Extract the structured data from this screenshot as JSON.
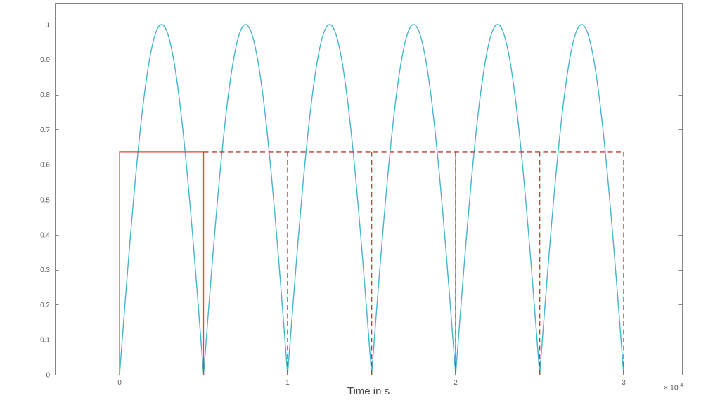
{
  "figure": {
    "background": "#ffffff",
    "axes_color": "#848484",
    "tick_label_color": "#5c5c5c",
    "label_color": "#454545"
  },
  "chart_data": {
    "type": "line",
    "title": "",
    "xlabel": "Time in s",
    "ylabel": "",
    "grid": false,
    "legend": null,
    "xlim": [
      -0.385,
      3.347
    ],
    "ylim": [
      0,
      1.062
    ],
    "xtick_values": [
      0,
      1,
      2,
      3
    ],
    "xtick_labels": [
      "0",
      "1",
      "2",
      "3"
    ],
    "x_multiplier": {
      "base": "× 10",
      "exponent": "-4"
    },
    "ytick_values": [
      0,
      0.1,
      0.2,
      0.3,
      0.4,
      0.5,
      0.6,
      0.7,
      0.8,
      0.9,
      1
    ],
    "ytick_labels": [
      "0",
      "0.1",
      "0.2",
      "0.3",
      "0.4",
      "0.5",
      "0.6",
      "0.7",
      "0.8",
      "0.9",
      "1"
    ],
    "dc_level": 0.6366,
    "series": [
      {
        "name": "rectified-sine",
        "type": "function",
        "fn": "abs_sin",
        "amplitude": 1,
        "arch_width": 0.5,
        "t_start": 0,
        "t_end": 3,
        "color": "#44b5cc",
        "style": "solid",
        "width": 1.4
      },
      {
        "name": "square-pulse-first-period",
        "type": "polyline",
        "points": [
          [
            0,
            0
          ],
          [
            0,
            0.6366
          ],
          [
            0.5,
            0.6366
          ],
          [
            0.5,
            0
          ]
        ],
        "color": "#e3453a",
        "style": "solid",
        "width": 1.3
      },
      {
        "name": "period-marker-solid",
        "type": "polyline",
        "points": [
          [
            2,
            0
          ],
          [
            2,
            0.6366
          ]
        ],
        "color": "#e3453a",
        "style": "solid",
        "width": 1.3
      },
      {
        "name": "dc-component-dashed",
        "type": "polyline",
        "points": [
          [
            0.5,
            0.6366
          ],
          [
            3,
            0.6366
          ]
        ],
        "color": "#c43c35",
        "style": "dashed",
        "width": 1.4
      },
      {
        "name": "period-boundaries-dashed",
        "type": "multisegment",
        "segments": [
          [
            [
              1,
              0
            ],
            [
              1,
              0.6366
            ]
          ],
          [
            [
              1.5,
              0
            ],
            [
              1.5,
              0.6366
            ]
          ],
          [
            [
              2,
              0
            ],
            [
              2,
              0.6366
            ]
          ],
          [
            [
              2.5,
              0
            ],
            [
              2.5,
              0.6366
            ]
          ],
          [
            [
              3,
              0
            ],
            [
              3,
              0.6366
            ]
          ]
        ],
        "color": "#c43c35",
        "style": "dashed",
        "width": 1.5
      }
    ]
  }
}
